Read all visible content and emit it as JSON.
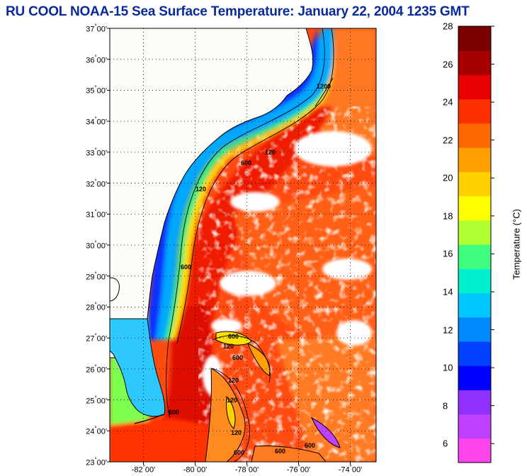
{
  "title": "RU COOL  NOAA-15  Sea Surface Temperature:  January 22, 2004 1235 GMT",
  "map": {
    "lat_labels": [
      {
        "deg": "37",
        "min": "00'",
        "value": 37
      },
      {
        "deg": "36",
        "min": "00'",
        "value": 36
      },
      {
        "deg": "35",
        "min": "00'",
        "value": 35
      },
      {
        "deg": "34",
        "min": "00'",
        "value": 34
      },
      {
        "deg": "33",
        "min": "00'",
        "value": 33
      },
      {
        "deg": "32",
        "min": "00'",
        "value": 32
      },
      {
        "deg": "31",
        "min": "00'",
        "value": 31
      },
      {
        "deg": "30",
        "min": "00'",
        "value": 30
      },
      {
        "deg": "29",
        "min": "00'",
        "value": 29
      },
      {
        "deg": "28",
        "min": "00'",
        "value": 28
      },
      {
        "deg": "27",
        "min": "00'",
        "value": 27
      },
      {
        "deg": "26",
        "min": "00'",
        "value": 26
      },
      {
        "deg": "25",
        "min": "00'",
        "value": 25
      },
      {
        "deg": "24",
        "min": "00'",
        "value": 24
      },
      {
        "deg": "23",
        "min": "00'",
        "value": 23
      }
    ],
    "lon_labels": [
      {
        "deg": "-82",
        "min": "00'",
        "value": -82
      },
      {
        "deg": "-80",
        "min": "00'",
        "value": -80
      },
      {
        "deg": "-78",
        "min": "00'",
        "value": -78
      },
      {
        "deg": "-76",
        "min": "00'",
        "value": -76
      },
      {
        "deg": "-74",
        "min": "00'",
        "value": -74
      }
    ],
    "lat_range": [
      23,
      37
    ],
    "lon_range": [
      -83.3,
      -73.0
    ],
    "contour_labels": [
      "120",
      "600",
      "1200",
      "120",
      "600",
      "120",
      "600",
      "600",
      "120",
      "600",
      "120",
      "600",
      "600",
      "120",
      "600"
    ]
  },
  "colorbar": {
    "title": "Temperature (°C)",
    "min": 5,
    "max": 28,
    "ticks": [
      28,
      26,
      24,
      22,
      20,
      18,
      16,
      14,
      12,
      10,
      8,
      6
    ],
    "palette": [
      "#ff44ee",
      "#c040ff",
      "#9030ff",
      "#0000ff",
      "#0040ff",
      "#0088ff",
      "#00c8ff",
      "#00f0d0",
      "#40ff80",
      "#b0ff30",
      "#ffff00",
      "#ffd000",
      "#ffa000",
      "#ff6a00",
      "#ff3000",
      "#e80000",
      "#a80000",
      "#7a0000"
    ]
  }
}
